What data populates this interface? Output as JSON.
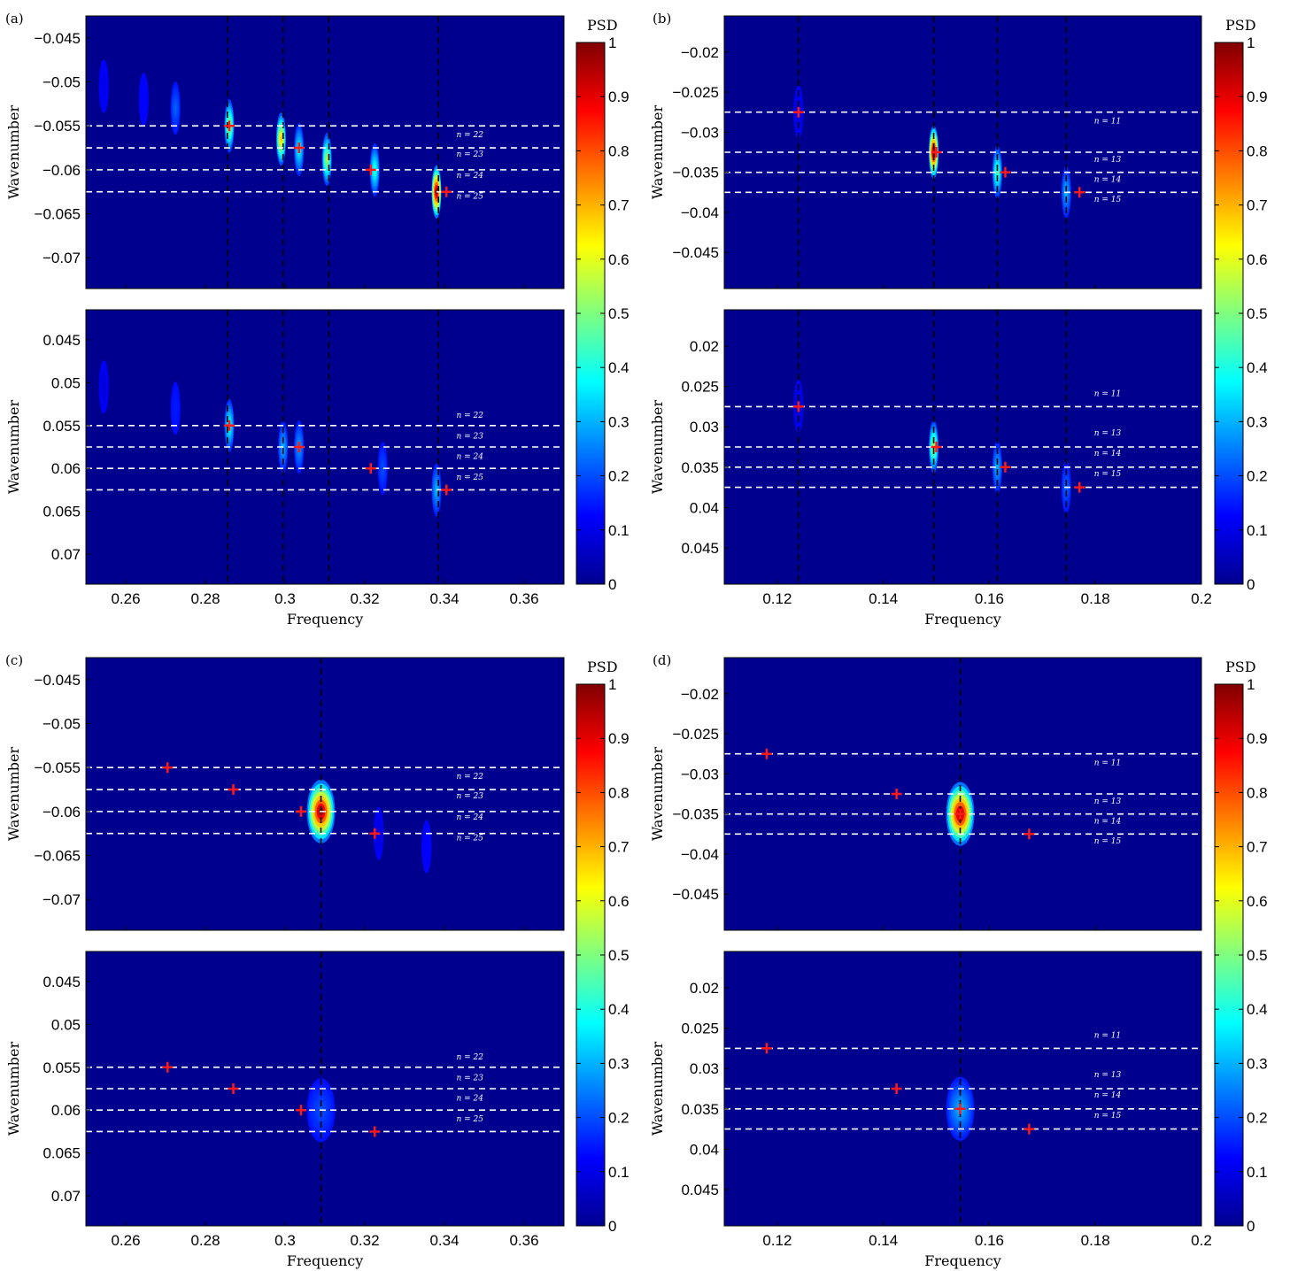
{
  "colorbar": {
    "title": "PSD",
    "ticks": [
      "0",
      "0.1",
      "0.2",
      "0.3",
      "0.4",
      "0.5",
      "0.6",
      "0.7",
      "0.8",
      "0.9",
      "1"
    ]
  },
  "chart_data": [
    {
      "label": "(a)",
      "type": "heatmap",
      "xlabel": "Frequency",
      "ylabel": "Wavenumber",
      "xlim": [
        0.25,
        0.37
      ],
      "xticks": [
        0.26,
        0.28,
        0.3,
        0.32,
        0.34,
        0.36
      ],
      "xticklabels": [
        "0.26",
        "0.28",
        "0.3",
        "0.32",
        "0.34",
        "0.36"
      ],
      "vlines": [
        0.2855,
        0.2995,
        0.311,
        0.3385
      ],
      "mode_labels": [
        "n = 22",
        "n = 23",
        "n = 24",
        "n = 25"
      ],
      "top": {
        "ylim": [
          -0.0425,
          -0.0735
        ],
        "yticks": [
          -0.07,
          -0.065,
          -0.06,
          -0.055,
          -0.05,
          -0.045
        ],
        "yticklabels": [
          "−0.07",
          "−0.065",
          "−0.06",
          "−0.055",
          "−0.05",
          "−0.045"
        ],
        "hlines": [
          -0.055,
          -0.0575,
          -0.06,
          -0.0625
        ],
        "label_y": [
          -0.0563,
          -0.0585,
          -0.0609,
          -0.0633
        ],
        "peaks": [
          {
            "x": 0.338,
            "y": -0.0625,
            "amp": 1.0
          },
          {
            "x": 0.3225,
            "y": -0.06,
            "amp": 0.42
          },
          {
            "x": 0.3105,
            "y": -0.0588,
            "amp": 0.55
          },
          {
            "x": 0.3035,
            "y": -0.0577,
            "amp": 0.38
          },
          {
            "x": 0.299,
            "y": -0.0565,
            "amp": 0.68
          },
          {
            "x": 0.286,
            "y": -0.055,
            "amp": 0.55
          },
          {
            "x": 0.2725,
            "y": -0.053,
            "amp": 0.22
          },
          {
            "x": 0.2645,
            "y": -0.052,
            "amp": 0.12
          },
          {
            "x": 0.2545,
            "y": -0.0505,
            "amp": 0.1
          }
        ],
        "markers": [
          {
            "x": 0.3405,
            "y": -0.0625
          },
          {
            "x": 0.3215,
            "y": -0.06
          },
          {
            "x": 0.3035,
            "y": -0.0575
          },
          {
            "x": 0.286,
            "y": -0.055
          }
        ]
      },
      "bottom": {
        "ylim": [
          0.0415,
          0.0735
        ],
        "yticks": [
          0.045,
          0.05,
          0.055,
          0.06,
          0.065,
          0.07
        ],
        "yticklabels": [
          "0.045",
          "0.05",
          "0.055",
          "0.06",
          "0.065",
          "0.07"
        ],
        "hlines": [
          0.055,
          0.0575,
          0.06,
          0.0625
        ],
        "label_y": [
          0.0541,
          0.0565,
          0.0589,
          0.0613
        ],
        "peaks": [
          {
            "x": 0.286,
            "y": 0.055,
            "amp": 0.4
          },
          {
            "x": 0.2995,
            "y": 0.0575,
            "amp": 0.3
          },
          {
            "x": 0.3035,
            "y": 0.0575,
            "amp": 0.28
          },
          {
            "x": 0.3245,
            "y": 0.06,
            "amp": 0.2
          },
          {
            "x": 0.338,
            "y": 0.0625,
            "amp": 0.3
          },
          {
            "x": 0.2725,
            "y": 0.053,
            "amp": 0.15
          },
          {
            "x": 0.2545,
            "y": 0.0505,
            "amp": 0.08
          }
        ],
        "markers": [
          {
            "x": 0.286,
            "y": 0.055
          },
          {
            "x": 0.3035,
            "y": 0.0575
          },
          {
            "x": 0.3215,
            "y": 0.06
          },
          {
            "x": 0.3405,
            "y": 0.0625
          }
        ]
      }
    },
    {
      "label": "(b)",
      "type": "heatmap",
      "xlabel": "Frequency",
      "ylabel": "Wavenumber",
      "xlim": [
        0.11,
        0.2
      ],
      "xticks": [
        0.12,
        0.14,
        0.16,
        0.18,
        0.2
      ],
      "xticklabels": [
        "0.12",
        "0.14",
        "0.16",
        "0.18",
        "0.2"
      ],
      "vlines": [
        0.124,
        0.1495,
        0.1615,
        0.1745
      ],
      "mode_labels": [
        "n = 11",
        "n = 13",
        "n = 14",
        "n = 15"
      ],
      "top": {
        "ylim": [
          -0.0155,
          -0.0495
        ],
        "yticks": [
          -0.045,
          -0.04,
          -0.035,
          -0.03,
          -0.025,
          -0.02
        ],
        "yticklabels": [
          "−0.045",
          "−0.04",
          "−0.035",
          "−0.03",
          "−0.025",
          "−0.02"
        ],
        "hlines": [
          -0.0275,
          -0.0325,
          -0.035,
          -0.0375
        ],
        "label_y": [
          -0.0289,
          -0.0337,
          -0.0362,
          -0.0387
        ],
        "peaks": [
          {
            "x": 0.1495,
            "y": -0.0325,
            "amp": 1.0
          },
          {
            "x": 0.1615,
            "y": -0.035,
            "amp": 0.45
          },
          {
            "x": 0.1745,
            "y": -0.0375,
            "amp": 0.3
          },
          {
            "x": 0.124,
            "y": -0.0275,
            "amp": 0.08
          }
        ],
        "markers": [
          {
            "x": 0.124,
            "y": -0.0275
          },
          {
            "x": 0.15,
            "y": -0.0325
          },
          {
            "x": 0.163,
            "y": -0.035
          },
          {
            "x": 0.177,
            "y": -0.0375
          }
        ]
      },
      "bottom": {
        "ylim": [
          0.0155,
          0.0495
        ],
        "yticks": [
          0.02,
          0.025,
          0.03,
          0.035,
          0.04,
          0.045
        ],
        "yticklabels": [
          "0.02",
          "0.025",
          "0.03",
          "0.035",
          "0.04",
          "0.045"
        ],
        "hlines": [
          0.0275,
          0.0325,
          0.035,
          0.0375
        ],
        "label_y": [
          0.0262,
          0.0311,
          0.0336,
          0.0361
        ],
        "peaks": [
          {
            "x": 0.1495,
            "y": 0.0325,
            "amp": 0.55
          },
          {
            "x": 0.1615,
            "y": 0.035,
            "amp": 0.3
          },
          {
            "x": 0.1745,
            "y": 0.0375,
            "amp": 0.22
          },
          {
            "x": 0.124,
            "y": 0.0275,
            "amp": 0.06
          }
        ],
        "markers": [
          {
            "x": 0.124,
            "y": 0.0275
          },
          {
            "x": 0.15,
            "y": 0.0325
          },
          {
            "x": 0.163,
            "y": 0.035
          },
          {
            "x": 0.177,
            "y": 0.0375
          }
        ]
      }
    },
    {
      "label": "(c)",
      "type": "heatmap",
      "xlabel": "Frequency",
      "ylabel": "Wavenumber",
      "xlim": [
        0.25,
        0.37
      ],
      "xticks": [
        0.26,
        0.28,
        0.3,
        0.32,
        0.34,
        0.36
      ],
      "xticklabels": [
        "0.26",
        "0.28",
        "0.3",
        "0.32",
        "0.34",
        "0.36"
      ],
      "vlines": [
        0.309
      ],
      "mode_labels": [
        "n = 22",
        "n = 23",
        "n = 24",
        "n = 25"
      ],
      "top": {
        "ylim": [
          -0.0425,
          -0.0735
        ],
        "yticks": [
          -0.07,
          -0.065,
          -0.06,
          -0.055,
          -0.05,
          -0.045
        ],
        "yticklabels": [
          "−0.07",
          "−0.065",
          "−0.06",
          "−0.055",
          "−0.05",
          "−0.045"
        ],
        "hlines": [
          -0.055,
          -0.0575,
          -0.06,
          -0.0625
        ],
        "label_y": [
          -0.0563,
          -0.0585,
          -0.0609,
          -0.0633
        ],
        "peaks": [
          {
            "x": 0.309,
            "y": -0.06,
            "amp": 1.0,
            "wide": true
          },
          {
            "x": 0.3355,
            "y": -0.064,
            "amp": 0.12
          },
          {
            "x": 0.3235,
            "y": -0.0625,
            "amp": 0.08
          }
        ],
        "markers": [
          {
            "x": 0.2705,
            "y": -0.055
          },
          {
            "x": 0.287,
            "y": -0.0575
          },
          {
            "x": 0.304,
            "y": -0.06
          },
          {
            "x": 0.3225,
            "y": -0.0625
          }
        ]
      },
      "bottom": {
        "ylim": [
          0.0415,
          0.0735
        ],
        "yticks": [
          0.045,
          0.05,
          0.055,
          0.06,
          0.065,
          0.07
        ],
        "yticklabels": [
          "0.045",
          "0.05",
          "0.055",
          "0.06",
          "0.065",
          "0.07"
        ],
        "hlines": [
          0.055,
          0.0575,
          0.06,
          0.0625
        ],
        "label_y": [
          0.0541,
          0.0565,
          0.0589,
          0.0613
        ],
        "peaks": [
          {
            "x": 0.309,
            "y": 0.06,
            "amp": 0.2,
            "wide": true
          }
        ],
        "markers": [
          {
            "x": 0.2705,
            "y": 0.055
          },
          {
            "x": 0.287,
            "y": 0.0575
          },
          {
            "x": 0.304,
            "y": 0.06
          },
          {
            "x": 0.3225,
            "y": 0.0625
          }
        ]
      }
    },
    {
      "label": "(d)",
      "type": "heatmap",
      "xlabel": "Frequency",
      "ylabel": "Wavenumber",
      "xlim": [
        0.11,
        0.2
      ],
      "xticks": [
        0.12,
        0.14,
        0.16,
        0.18,
        0.2
      ],
      "xticklabels": [
        "0.12",
        "0.14",
        "0.16",
        "0.18",
        "0.2"
      ],
      "vlines": [
        0.1545
      ],
      "mode_labels": [
        "n = 11",
        "n = 13",
        "n = 14",
        "n = 15"
      ],
      "top": {
        "ylim": [
          -0.0155,
          -0.0495
        ],
        "yticks": [
          -0.045,
          -0.04,
          -0.035,
          -0.03,
          -0.025,
          -0.02
        ],
        "yticklabels": [
          "−0.045",
          "−0.04",
          "−0.035",
          "−0.03",
          "−0.025",
          "−0.02"
        ],
        "hlines": [
          -0.0275,
          -0.0325,
          -0.035,
          -0.0375
        ],
        "label_y": [
          -0.0289,
          -0.0337,
          -0.0362,
          -0.0387
        ],
        "peaks": [
          {
            "x": 0.1545,
            "y": -0.035,
            "amp": 1.0,
            "wide": true
          }
        ],
        "markers": [
          {
            "x": 0.118,
            "y": -0.0275
          },
          {
            "x": 0.1425,
            "y": -0.0325
          },
          {
            "x": 0.1545,
            "y": -0.035
          },
          {
            "x": 0.1675,
            "y": -0.0375
          }
        ]
      },
      "bottom": {
        "ylim": [
          0.0155,
          0.0495
        ],
        "yticks": [
          0.02,
          0.025,
          0.03,
          0.035,
          0.04,
          0.045
        ],
        "yticklabels": [
          "0.02",
          "0.025",
          "0.03",
          "0.035",
          "0.04",
          "0.045"
        ],
        "hlines": [
          0.0275,
          0.0325,
          0.035,
          0.0375
        ],
        "label_y": [
          0.0262,
          0.0311,
          0.0336,
          0.0361
        ],
        "peaks": [
          {
            "x": 0.1545,
            "y": 0.035,
            "amp": 0.3,
            "wide": true
          }
        ],
        "markers": [
          {
            "x": 0.118,
            "y": 0.0275
          },
          {
            "x": 0.1425,
            "y": 0.0325
          },
          {
            "x": 0.1545,
            "y": 0.035
          },
          {
            "x": 0.1675,
            "y": 0.0375
          }
        ]
      }
    }
  ]
}
